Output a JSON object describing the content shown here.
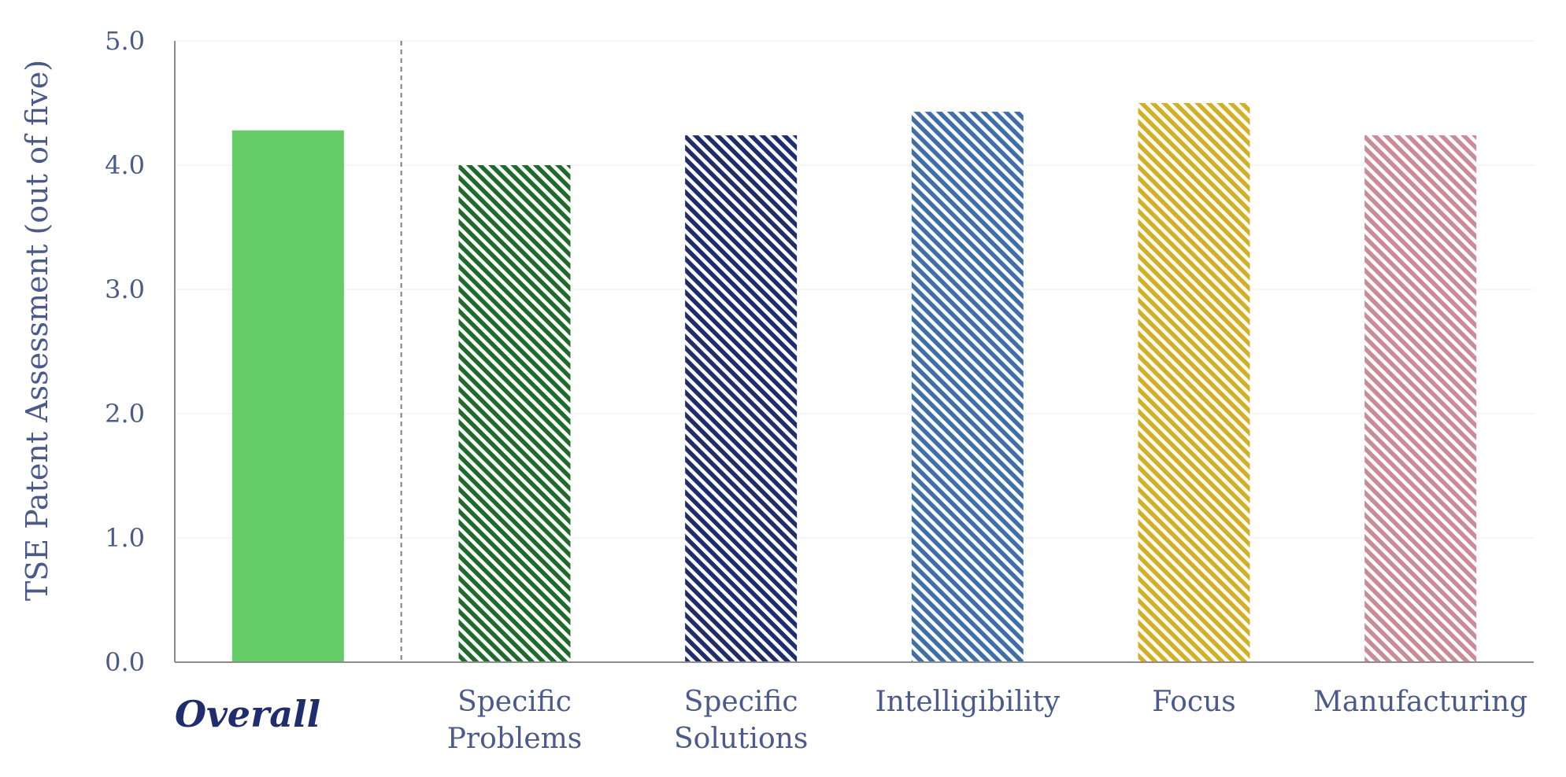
{
  "chart_data": {
    "type": "bar",
    "title": "",
    "xlabel": "",
    "ylabel": "TSE Patent Assessment (out of five)",
    "ylim": [
      0,
      5
    ],
    "yticks": [
      "0.0",
      "1.0",
      "2.0",
      "3.0",
      "4.0",
      "5.0"
    ],
    "grid": true,
    "categories": [
      {
        "label": "Overall",
        "lines": [
          "Overall"
        ],
        "value": 4.28,
        "color": "#66cc66",
        "fill": "solid",
        "emphasis": true
      },
      {
        "label": "Specific Problems",
        "lines": [
          "Specific",
          "Problems"
        ],
        "value": 4.0,
        "color": "#1e6b2a",
        "fill": "hatched",
        "emphasis": false
      },
      {
        "label": "Specific Solutions",
        "lines": [
          "Specific",
          "Solutions"
        ],
        "value": 4.24,
        "color": "#1f2d6e",
        "fill": "hatched",
        "emphasis": false
      },
      {
        "label": "Intelligibility",
        "lines": [
          "Intelligibility"
        ],
        "value": 4.43,
        "color": "#3f6faa",
        "fill": "hatched",
        "emphasis": false
      },
      {
        "label": "Focus",
        "lines": [
          "Focus"
        ],
        "value": 4.5,
        "color": "#d4b020",
        "fill": "hatched",
        "emphasis": false
      },
      {
        "label": "Manufacturing",
        "lines": [
          "Manufacturing"
        ],
        "value": 4.24,
        "color": "#cc8a96",
        "fill": "hatched",
        "emphasis": false
      }
    ],
    "separator_after_index": 0
  }
}
